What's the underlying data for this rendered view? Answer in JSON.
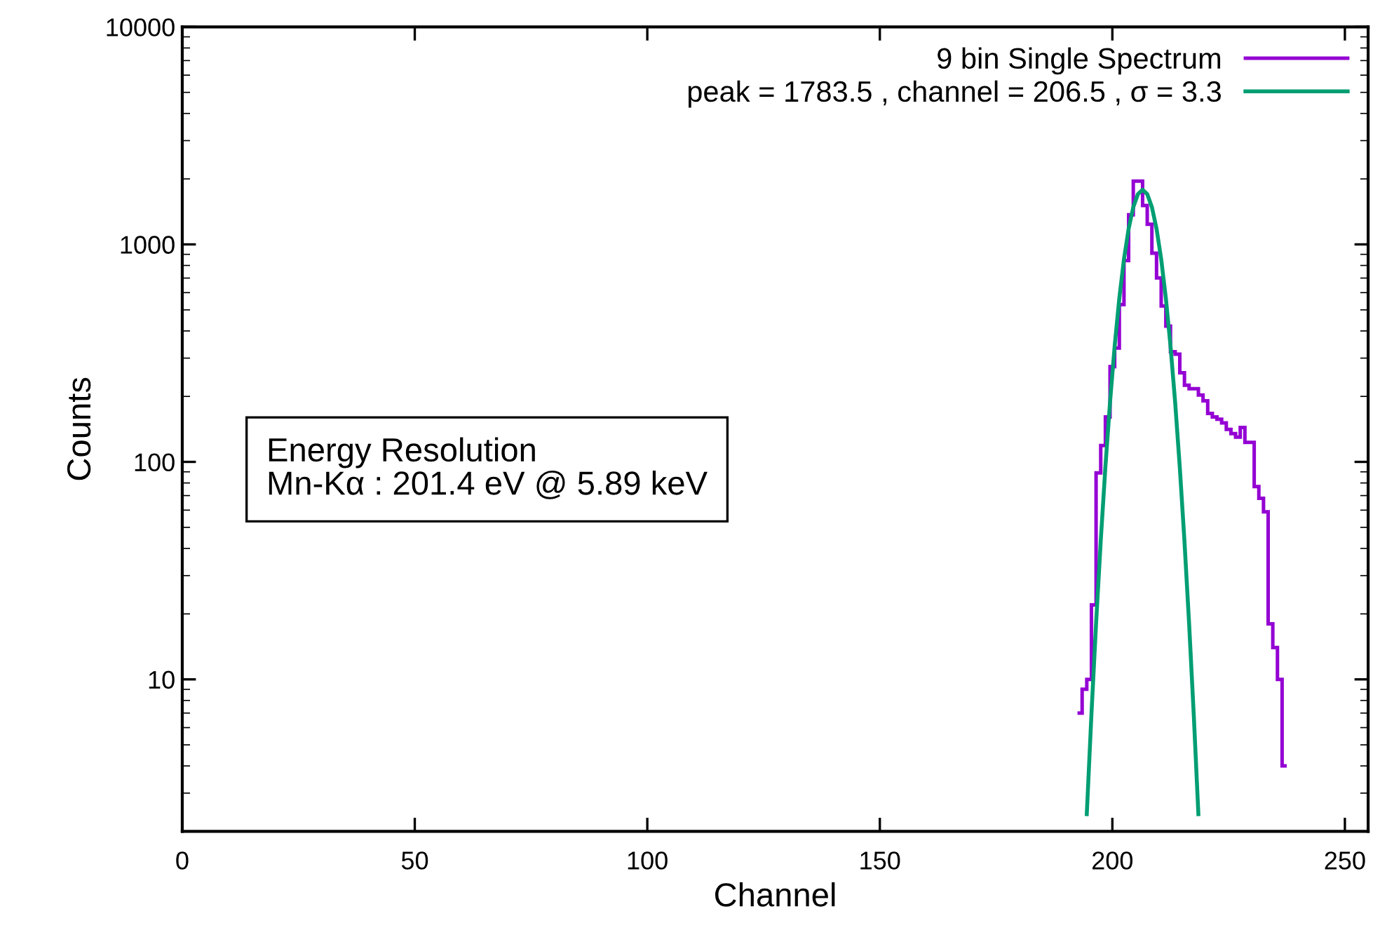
{
  "chart_data": {
    "type": "histogram",
    "xlabel": "Channel",
    "ylabel": "Counts",
    "log": "y",
    "xlim": [
      0,
      255
    ],
    "xticks": [
      0,
      50,
      100,
      150,
      200,
      250
    ],
    "ylim": [
      2,
      10000
    ],
    "yticks": [
      10,
      100,
      1000,
      10000
    ],
    "grid": false,
    "legend": "top right",
    "annotations": [
      "Energy Resolution\nMn-Kα : 201.4 eV @ 5.89 keV"
    ],
    "series": [
      {
        "name": "9 bin Single Spectrum",
        "color": "#9400d3",
        "bins": [
          192.5,
          193.5,
          194.5,
          195.5,
          196.5,
          197.5,
          198.5,
          199.5,
          200.5,
          201.5,
          202.5,
          203.5,
          204.5,
          205.5,
          206.5,
          207.5,
          208.5,
          209.5,
          210.5,
          211.5,
          212.5,
          213.5,
          214.5,
          215.5,
          216.5,
          217.5,
          218.5,
          219.5,
          220.5,
          221.5,
          222.5,
          223.5,
          224.5,
          225.5,
          226.5,
          227.5,
          228.5,
          229.5,
          230.5,
          231.5,
          232.5,
          233.5,
          234.5,
          235.5,
          236.5,
          237.5
        ],
        "values": [
          7,
          9,
          10,
          22,
          89,
          119,
          161,
          274,
          334,
          529,
          842,
          1367,
          1953,
          1953,
          1509,
          1238,
          911,
          701,
          521,
          421,
          321,
          313,
          257,
          225,
          217,
          217,
          203,
          191,
          167,
          161,
          157,
          151,
          141,
          135,
          130,
          144,
          123,
          123,
          77,
          68,
          59,
          18,
          14,
          10,
          4
        ]
      },
      {
        "type": "line",
        "name": "peak = 1783.5 , channel = 206.5 , σ = 3.3",
        "color": "#009e73",
        "x": [
          194.5,
          195.5,
          196.5,
          197.5,
          198.5,
          199.5,
          200.5,
          201.5,
          202.5,
          203.5,
          204.5,
          205.5,
          206.5,
          207.5,
          208.5,
          209.5,
          210.5,
          211.5,
          212.5,
          213.5,
          214.5,
          215.5,
          216.5,
          217.5,
          218.5
        ],
        "values": [
          2.4,
          6.9,
          18.1,
          43.3,
          94.5,
          188,
          342,
          566,
          856,
          1180,
          1484,
          1703,
          1783.5,
          1703,
          1484,
          1180,
          856,
          566,
          342,
          188,
          94.5,
          43.3,
          18.1,
          6.9,
          2.4
        ]
      }
    ]
  }
}
